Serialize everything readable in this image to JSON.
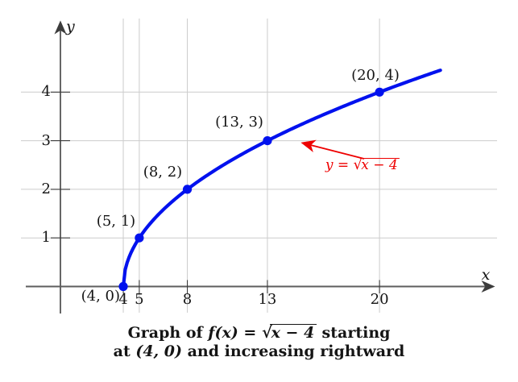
{
  "figure": {
    "background": "#ffffff",
    "colors": {
      "curve": "#0011ee",
      "annotation": "#ee0000",
      "axis": "#5e5e5e",
      "tick": "#3c3c3c",
      "grid": "#cccccc",
      "text": "#141414"
    }
  },
  "chart_data": {
    "type": "line",
    "title": "",
    "xlabel": "x",
    "ylabel": "y",
    "function": "y = sqrt(x - 4)",
    "domain": [
      4,
      23.85
    ],
    "xlim": [
      -2.4,
      27.3
    ],
    "ylim": [
      -0.55,
      5.5
    ],
    "grid": true,
    "x_ticks": [
      4,
      5,
      8,
      13,
      20
    ],
    "y_ticks": [
      1,
      2,
      3,
      4
    ],
    "points": [
      {
        "x": 4,
        "y": 0,
        "label": "(4, 0)"
      },
      {
        "x": 5,
        "y": 1,
        "label": "(5, 1)"
      },
      {
        "x": 8,
        "y": 2,
        "label": "(8, 2)"
      },
      {
        "x": 13,
        "y": 3,
        "label": "(13, 3)"
      },
      {
        "x": 20,
        "y": 4,
        "label": "(20, 4)"
      }
    ],
    "annotation": {
      "segments": [
        {
          "t": "y",
          "s": "it"
        },
        {
          "t": " = ",
          "s": "rm"
        },
        {
          "t": "x − 4",
          "s": "sqrt"
        }
      ]
    }
  },
  "caption": {
    "line1": [
      {
        "t": "Graph of ",
        "s": "rm"
      },
      {
        "t": "f(x)",
        "s": "it"
      },
      {
        "t": "  =  ",
        "s": "rm"
      },
      {
        "t": "x − 4",
        "s": "sqrt"
      },
      {
        "t": " starting",
        "s": "rm"
      }
    ],
    "line2": [
      {
        "t": "at ",
        "s": "rm"
      },
      {
        "t": "(4, 0)",
        "s": "it"
      },
      {
        "t": " and increasing rightward",
        "s": "rm"
      }
    ]
  }
}
